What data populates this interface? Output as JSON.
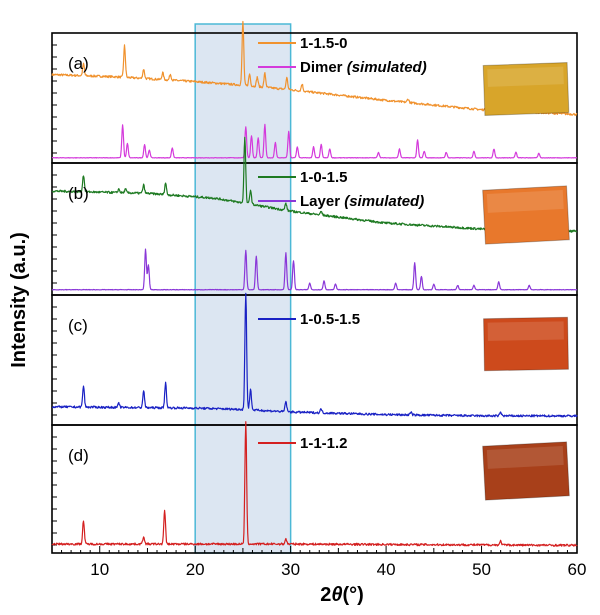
{
  "chart_data": {
    "type": "line",
    "xlabel_prefix": "2",
    "xlabel_var": "θ",
    "xlabel_unit": "(°)",
    "ylabel": "Intensity (a.u.)",
    "xlim": [
      5,
      60
    ],
    "xticks": [
      10,
      20,
      30,
      40,
      50,
      60
    ],
    "highlight_range": [
      20,
      30
    ],
    "highlight_color": "#dce6f2",
    "highlight_border": "#4bb8d6",
    "panels": [
      {
        "label": "(a)",
        "sample_image_color": "#d8a52a",
        "series": [
          {
            "name": "1-1.5-0",
            "color": "#f0922e",
            "baseline": [
              [
                5,
                0.4
              ],
              [
                12,
                0.38
              ],
              [
                20,
                0.34
              ],
              [
                25,
                0.31
              ],
              [
                30,
                0.27
              ],
              [
                40,
                0.18
              ],
              [
                50,
                0.1
              ],
              [
                60,
                0.06
              ]
            ],
            "peaks": [
              [
                8.3,
                0.1
              ],
              [
                12.6,
                0.27
              ],
              [
                14.6,
                0.08
              ],
              [
                16.6,
                0.06
              ],
              [
                17.4,
                0.05
              ],
              [
                25.0,
                0.54
              ],
              [
                25.7,
                0.1
              ],
              [
                26.5,
                0.08
              ],
              [
                27.3,
                0.12
              ],
              [
                29.6,
                0.1
              ],
              [
                31.2,
                0.06
              ],
              [
                42.3,
                0.03
              ],
              [
                50.5,
                0.03
              ]
            ]
          },
          {
            "name": "Dimer",
            "name_suffix": "(simulated)",
            "color": "#d43adb",
            "baseline": [
              [
                5,
                0.0
              ],
              [
                60,
                0.0
              ]
            ],
            "peaks": [
              [
                12.4,
                0.3
              ],
              [
                12.9,
                0.13
              ],
              [
                14.7,
                0.12
              ],
              [
                15.2,
                0.07
              ],
              [
                17.6,
                0.09
              ],
              [
                25.3,
                0.28
              ],
              [
                25.9,
                0.2
              ],
              [
                26.6,
                0.18
              ],
              [
                27.3,
                0.3
              ],
              [
                28.4,
                0.14
              ],
              [
                29.8,
                0.24
              ],
              [
                30.7,
                0.1
              ],
              [
                32.4,
                0.1
              ],
              [
                33.2,
                0.12
              ],
              [
                34.1,
                0.08
              ],
              [
                39.2,
                0.05
              ],
              [
                41.4,
                0.08
              ],
              [
                43.3,
                0.16
              ],
              [
                44.0,
                0.06
              ],
              [
                46.3,
                0.05
              ],
              [
                49.2,
                0.06
              ],
              [
                51.3,
                0.08
              ],
              [
                53.6,
                0.05
              ],
              [
                56.0,
                0.04
              ]
            ]
          }
        ]
      },
      {
        "label": "(b)",
        "sample_image_color": "#e8782c",
        "series": [
          {
            "name": "1-0-1.5",
            "color": "#1e7a22",
            "baseline": [
              [
                5,
                0.52
              ],
              [
                15,
                0.5
              ],
              [
                22,
                0.46
              ],
              [
                25,
                0.42
              ],
              [
                30,
                0.35
              ],
              [
                40,
                0.25
              ],
              [
                50,
                0.2
              ],
              [
                60,
                0.18
              ]
            ],
            "peaks": [
              [
                8.3,
                0.14
              ],
              [
                12.0,
                0.03
              ],
              [
                12.7,
                0.03
              ],
              [
                14.6,
                0.07
              ],
              [
                16.9,
                0.1
              ],
              [
                25.2,
                0.55
              ],
              [
                25.8,
                0.12
              ],
              [
                29.5,
                0.06
              ],
              [
                33.2,
                0.03
              ],
              [
                51.5,
                0.02
              ]
            ]
          },
          {
            "name": "Layer",
            "name_suffix": "(simulated)",
            "color": "#8a38d8",
            "baseline": [
              [
                5,
                0.0
              ],
              [
                60,
                0.0
              ]
            ],
            "peaks": [
              [
                14.8,
                0.36
              ],
              [
                15.1,
                0.22
              ],
              [
                25.3,
                0.35
              ],
              [
                26.4,
                0.3
              ],
              [
                29.5,
                0.33
              ],
              [
                30.3,
                0.26
              ],
              [
                32.0,
                0.06
              ],
              [
                33.5,
                0.08
              ],
              [
                34.7,
                0.05
              ],
              [
                41.0,
                0.06
              ],
              [
                43.0,
                0.24
              ],
              [
                43.7,
                0.12
              ],
              [
                45.0,
                0.05
              ],
              [
                47.5,
                0.04
              ],
              [
                49.2,
                0.04
              ],
              [
                51.8,
                0.07
              ],
              [
                55.0,
                0.04
              ]
            ]
          }
        ]
      },
      {
        "label": "(c)",
        "sample_image_color": "#cd4a1c",
        "series": [
          {
            "name": "1-0.5-1.5",
            "color": "#1a22c4",
            "baseline": [
              [
                5,
                0.1
              ],
              [
                20,
                0.09
              ],
              [
                25,
                0.08
              ],
              [
                30,
                0.06
              ],
              [
                40,
                0.04
              ],
              [
                50,
                0.03
              ],
              [
                60,
                0.03
              ]
            ],
            "peaks": [
              [
                8.3,
                0.16
              ],
              [
                12.0,
                0.03
              ],
              [
                14.6,
                0.13
              ],
              [
                16.9,
                0.19
              ],
              [
                25.3,
                0.9
              ],
              [
                25.8,
                0.16
              ],
              [
                29.5,
                0.08
              ],
              [
                33.2,
                0.03
              ],
              [
                42.6,
                0.02
              ],
              [
                52.0,
                0.03
              ]
            ]
          }
        ]
      },
      {
        "label": "(d)",
        "sample_image_color": "#a8401a",
        "series": [
          {
            "name": "1-1-1.2",
            "color": "#d42020",
            "baseline": [
              [
                5,
                0.03
              ],
              [
                30,
                0.03
              ],
              [
                60,
                0.02
              ]
            ],
            "peaks": [
              [
                8.3,
                0.18
              ],
              [
                14.6,
                0.06
              ],
              [
                16.8,
                0.26
              ],
              [
                25.3,
                0.95
              ],
              [
                29.5,
                0.04
              ],
              [
                52.0,
                0.03
              ]
            ]
          }
        ]
      }
    ]
  }
}
